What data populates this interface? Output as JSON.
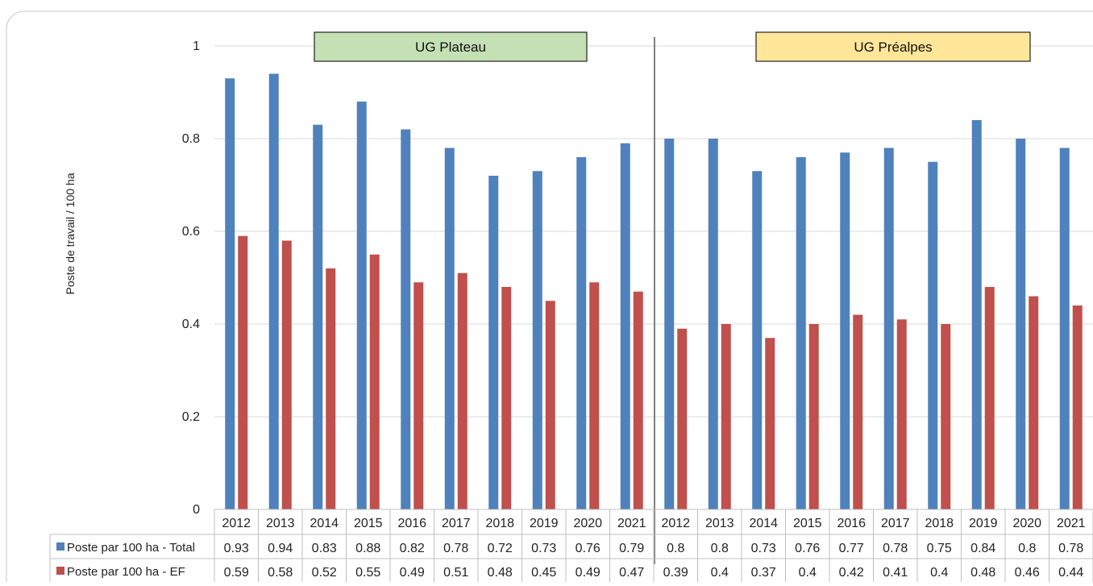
{
  "chart_data": {
    "type": "bar",
    "title": "",
    "xlabel": "",
    "ylabel": "Poste de travail / 100 ha",
    "ylim": [
      0,
      1
    ],
    "yticks": [
      "0",
      "0.2",
      "0.4",
      "0.6",
      "0.8",
      "1"
    ],
    "ytick_values": [
      0,
      0.2,
      0.4,
      0.6,
      0.8,
      1
    ],
    "grid": true,
    "legend": "data-table-left",
    "groups": [
      {
        "label": "UG Plateau",
        "color": "#c5e0b4",
        "categories": [
          "2012",
          "2013",
          "2014",
          "2015",
          "2016",
          "2017",
          "2018",
          "2019",
          "2020",
          "2021"
        ]
      },
      {
        "label": "UG Préalpes",
        "color": "#ffe699",
        "categories": [
          "2012",
          "2013",
          "2014",
          "2015",
          "2016",
          "2017",
          "2018",
          "2019",
          "2020",
          "2021"
        ]
      }
    ],
    "categories": [
      "2012",
      "2013",
      "2014",
      "2015",
      "2016",
      "2017",
      "2018",
      "2019",
      "2020",
      "2021",
      "2012",
      "2013",
      "2014",
      "2015",
      "2016",
      "2017",
      "2018",
      "2019",
      "2020",
      "2021"
    ],
    "series": [
      {
        "name": "Poste par 100 ha - Total",
        "color": "#4f81bd",
        "values": [
          0.93,
          0.94,
          0.83,
          0.88,
          0.82,
          0.78,
          0.72,
          0.73,
          0.76,
          0.79,
          0.8,
          0.8,
          0.73,
          0.76,
          0.77,
          0.78,
          0.75,
          0.84,
          0.8,
          0.78
        ],
        "labels": [
          "0.93",
          "0.94",
          "0.83",
          "0.88",
          "0.82",
          "0.78",
          "0.72",
          "0.73",
          "0.76",
          "0.79",
          "0.8",
          "0.8",
          "0.73",
          "0.76",
          "0.77",
          "0.78",
          "0.75",
          "0.84",
          "0.8",
          "0.78"
        ]
      },
      {
        "name": "Poste par 100 ha - EF",
        "color": "#c0504d",
        "values": [
          0.59,
          0.58,
          0.52,
          0.55,
          0.49,
          0.51,
          0.48,
          0.45,
          0.49,
          0.47,
          0.39,
          0.4,
          0.37,
          0.4,
          0.42,
          0.41,
          0.4,
          0.48,
          0.46,
          0.44
        ],
        "labels": [
          "0.59",
          "0.58",
          "0.52",
          "0.55",
          "0.49",
          "0.51",
          "0.48",
          "0.45",
          "0.49",
          "0.47",
          "0.39",
          "0.4",
          "0.37",
          "0.4",
          "0.42",
          "0.41",
          "0.4",
          "0.48",
          "0.46",
          "0.44"
        ]
      }
    ]
  }
}
